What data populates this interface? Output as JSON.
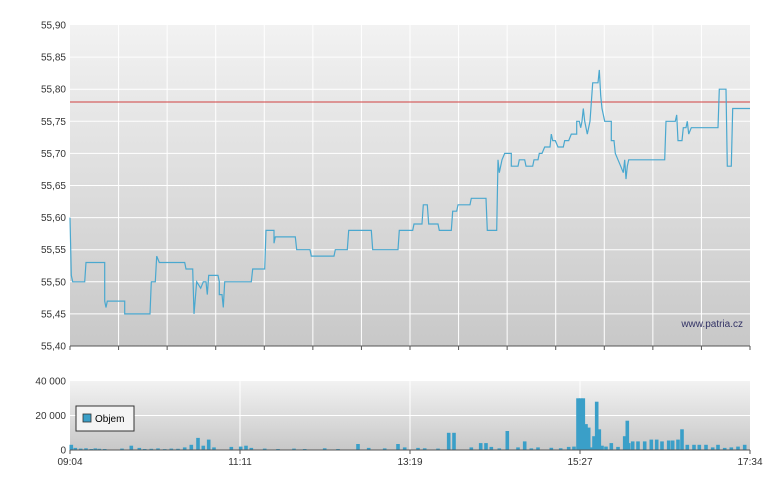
{
  "watermark": "www.patria.cz",
  "colors": {
    "price_line": "#4aa8cf",
    "reference_line": "#d04040",
    "volume_bar": "#3a9fc8",
    "grid": "#ffffff"
  },
  "chart_data": [
    {
      "type": "line",
      "title": "",
      "y_ticks": [
        "55,90",
        "55,85",
        "55,80",
        "55,75",
        "55,70",
        "55,65",
        "55,60",
        "55,55",
        "55,50",
        "55,45",
        "55,40"
      ],
      "ylim": [
        55.4,
        55.9
      ],
      "reference_line": 55.78,
      "x_start_minutes": 544,
      "x_end_minutes": 1054,
      "series": [
        {
          "points": [
            [
              544,
              55.6
            ],
            [
              545,
              55.51
            ],
            [
              546,
              55.5
            ],
            [
              555,
              55.5
            ],
            [
              556,
              55.53
            ],
            [
              570,
              55.53
            ],
            [
              570,
              55.47
            ],
            [
              571,
              55.46
            ],
            [
              572,
              55.47
            ],
            [
              585,
              55.47
            ],
            [
              585,
              55.45
            ],
            [
              604,
              55.45
            ],
            [
              605,
              55.5
            ],
            [
              608,
              55.5
            ],
            [
              609,
              55.54
            ],
            [
              611,
              55.53
            ],
            [
              630,
              55.53
            ],
            [
              631,
              55.52
            ],
            [
              636,
              55.52
            ],
            [
              637,
              55.45
            ],
            [
              639,
              55.5
            ],
            [
              642,
              55.49
            ],
            [
              644,
              55.5
            ],
            [
              646,
              55.5
            ],
            [
              647,
              55.48
            ],
            [
              648,
              55.51
            ],
            [
              655,
              55.51
            ],
            [
              656,
              55.5
            ],
            [
              656,
              55.48
            ],
            [
              658,
              55.48
            ],
            [
              659,
              55.46
            ],
            [
              660,
              55.5
            ],
            [
              680,
              55.5
            ],
            [
              681,
              55.52
            ],
            [
              690,
              55.52
            ],
            [
              691,
              55.58
            ],
            [
              697,
              55.58
            ],
            [
              697,
              55.56
            ],
            [
              698,
              55.57
            ],
            [
              713,
              55.57
            ],
            [
              714,
              55.55
            ],
            [
              724,
              55.55
            ],
            [
              725,
              55.54
            ],
            [
              742,
              55.54
            ],
            [
              743,
              55.55
            ],
            [
              752,
              55.55
            ],
            [
              753,
              55.58
            ],
            [
              770,
              55.58
            ],
            [
              771,
              55.55
            ],
            [
              790,
              55.55
            ],
            [
              791,
              55.58
            ],
            [
              801,
              55.58
            ],
            [
              802,
              55.59
            ],
            [
              808,
              55.59
            ],
            [
              809,
              55.62
            ],
            [
              812,
              55.62
            ],
            [
              813,
              55.59
            ],
            [
              815,
              55.59
            ],
            [
              820,
              55.59
            ],
            [
              821,
              55.58
            ],
            [
              830,
              55.58
            ],
            [
              831,
              55.61
            ],
            [
              834,
              55.61
            ],
            [
              835,
              55.62
            ],
            [
              844,
              55.62
            ],
            [
              845,
              55.63
            ],
            [
              856,
              55.63
            ],
            [
              857,
              55.58
            ],
            [
              864,
              55.58
            ],
            [
              865,
              55.69
            ],
            [
              866,
              55.67
            ],
            [
              868,
              55.69
            ],
            [
              870,
              55.7
            ],
            [
              875,
              55.7
            ],
            [
              875,
              55.68
            ],
            [
              880,
              55.68
            ],
            [
              881,
              55.69
            ],
            [
              885,
              55.69
            ],
            [
              886,
              55.68
            ],
            [
              891,
              55.68
            ],
            [
              892,
              55.69
            ],
            [
              895,
              55.69
            ],
            [
              896,
              55.7
            ],
            [
              898,
              55.7
            ],
            [
              900,
              55.71
            ],
            [
              904,
              55.71
            ],
            [
              905,
              55.73
            ],
            [
              906,
              55.72
            ],
            [
              908,
              55.72
            ],
            [
              910,
              55.71
            ],
            [
              914,
              55.71
            ],
            [
              915,
              55.72
            ],
            [
              918,
              55.72
            ],
            [
              920,
              55.73
            ],
            [
              924,
              55.73
            ],
            [
              924,
              55.75
            ],
            [
              926,
              55.75
            ],
            [
              927,
              55.74
            ],
            [
              928,
              55.75
            ],
            [
              929,
              55.77
            ],
            [
              930,
              55.75
            ],
            [
              932,
              55.73
            ],
            [
              934,
              55.75
            ],
            [
              936,
              55.81
            ],
            [
              940,
              55.81
            ],
            [
              941,
              55.83
            ],
            [
              942,
              55.79
            ],
            [
              943,
              55.77
            ],
            [
              945,
              55.75
            ],
            [
              950,
              55.75
            ],
            [
              950,
              55.72
            ],
            [
              952,
              55.72
            ],
            [
              953,
              55.7
            ],
            [
              955,
              55.69
            ],
            [
              957,
              55.68
            ],
            [
              959,
              55.67
            ],
            [
              960,
              55.69
            ],
            [
              961,
              55.66
            ],
            [
              962,
              55.68
            ],
            [
              963,
              55.69
            ],
            [
              990,
              55.69
            ],
            [
              991,
              55.75
            ],
            [
              998,
              55.75
            ],
            [
              999,
              55.76
            ],
            [
              1000,
              55.72
            ],
            [
              1003,
              55.72
            ],
            [
              1004,
              55.74
            ],
            [
              1006,
              55.74
            ],
            [
              1007,
              55.75
            ],
            [
              1008,
              55.73
            ],
            [
              1010,
              55.74
            ],
            [
              1030,
              55.74
            ],
            [
              1031,
              55.8
            ],
            [
              1036,
              55.8
            ],
            [
              1037,
              55.68
            ],
            [
              1040,
              55.68
            ],
            [
              1041,
              55.77
            ],
            [
              1054,
              55.77
            ]
          ]
        }
      ]
    },
    {
      "type": "bar",
      "title": "",
      "y_ticks": [
        "40 000",
        "20 000",
        "0"
      ],
      "ylim": [
        0,
        40000
      ],
      "x_ticks": [
        "09:04",
        "11:11",
        "13:19",
        "15:27",
        "17:34"
      ],
      "series": [
        {
          "name": "Objem",
          "bars": [
            [
              545,
              3000
            ],
            [
              548,
              1200
            ],
            [
              552,
              800
            ],
            [
              556,
              1000
            ],
            [
              560,
              600
            ],
            [
              563,
              900
            ],
            [
              566,
              700
            ],
            [
              570,
              600
            ],
            [
              583,
              800
            ],
            [
              590,
              2500
            ],
            [
              596,
              1200
            ],
            [
              600,
              600
            ],
            [
              605,
              700
            ],
            [
              610,
              900
            ],
            [
              615,
              500
            ],
            [
              620,
              800
            ],
            [
              625,
              700
            ],
            [
              630,
              1500
            ],
            [
              635,
              3000
            ],
            [
              640,
              7000
            ],
            [
              644,
              2500
            ],
            [
              648,
              6000
            ],
            [
              652,
              1500
            ],
            [
              665,
              1800
            ],
            [
              672,
              2000
            ],
            [
              676,
              2500
            ],
            [
              680,
              1200
            ],
            [
              690,
              800
            ],
            [
              700,
              600
            ],
            [
              712,
              800
            ],
            [
              720,
              600
            ],
            [
              735,
              1000
            ],
            [
              745,
              600
            ],
            [
              760,
              3500
            ],
            [
              768,
              1200
            ],
            [
              780,
              900
            ],
            [
              790,
              3500
            ],
            [
              795,
              1500
            ],
            [
              805,
              1200
            ],
            [
              810,
              1000
            ],
            [
              820,
              800
            ],
            [
              828,
              10000
            ],
            [
              832,
              10000
            ],
            [
              845,
              1500
            ],
            [
              852,
              4000
            ],
            [
              856,
              4000
            ],
            [
              860,
              1800
            ],
            [
              866,
              900
            ],
            [
              872,
              11000
            ],
            [
              880,
              1500
            ],
            [
              885,
              5000
            ],
            [
              890,
              900
            ],
            [
              895,
              1500
            ],
            [
              905,
              1300
            ],
            [
              912,
              1000
            ],
            [
              918,
              1800
            ],
            [
              922,
              2000
            ],
            [
              925,
              30000
            ],
            [
              927,
              30000
            ],
            [
              929,
              30000
            ],
            [
              931,
              15000
            ],
            [
              933,
              13000
            ],
            [
              935,
              1500
            ],
            [
              937,
              8000
            ],
            [
              939,
              28000
            ],
            [
              941,
              12000
            ],
            [
              943,
              2500
            ],
            [
              946,
              2000
            ],
            [
              950,
              4000
            ],
            [
              955,
              1800
            ],
            [
              960,
              8000
            ],
            [
              962,
              17000
            ],
            [
              963,
              4000
            ],
            [
              966,
              5000
            ],
            [
              970,
              5000
            ],
            [
              975,
              5000
            ],
            [
              980,
              6000
            ],
            [
              984,
              6000
            ],
            [
              988,
              5000
            ],
            [
              993,
              5500
            ],
            [
              996,
              5500
            ],
            [
              1000,
              6000
            ],
            [
              1003,
              12000
            ],
            [
              1007,
              3000
            ],
            [
              1012,
              3000
            ],
            [
              1016,
              3000
            ],
            [
              1021,
              3000
            ],
            [
              1026,
              1500
            ],
            [
              1030,
              3000
            ],
            [
              1035,
              1200
            ],
            [
              1040,
              1500
            ],
            [
              1045,
              2000
            ],
            [
              1050,
              3000
            ]
          ]
        }
      ]
    }
  ]
}
